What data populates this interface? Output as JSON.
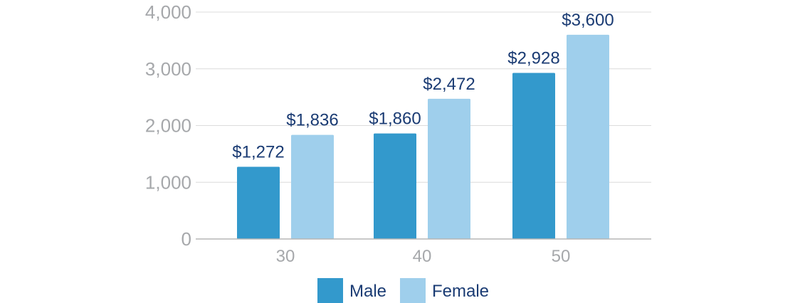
{
  "chart_data": {
    "type": "bar",
    "categories": [
      "30",
      "40",
      "50"
    ],
    "series": [
      {
        "name": "Male",
        "color": "#3399cc",
        "values": [
          1272,
          1860,
          2928
        ],
        "labels": [
          "$1,272",
          "$1,860",
          "$2,928"
        ]
      },
      {
        "name": "Female",
        "color": "#9fcfec",
        "values": [
          1836,
          2472,
          3600
        ],
        "labels": [
          "$1,836",
          "$2,472",
          "$3,600"
        ]
      }
    ],
    "title": "",
    "xlabel": "",
    "ylabel": "",
    "ylim": [
      0,
      4000
    ],
    "yticks": [
      0,
      1000,
      2000,
      3000,
      4000
    ],
    "ytick_labels": [
      "0",
      "1,000",
      "2,000",
      "3,000",
      "4,000"
    ],
    "grid": true,
    "legend_position": "bottom-center"
  }
}
